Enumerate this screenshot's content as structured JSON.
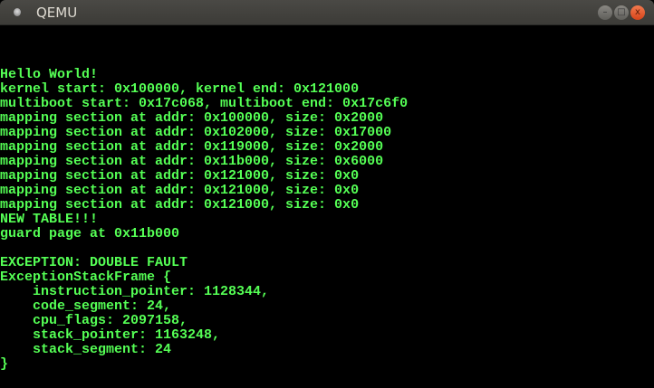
{
  "window": {
    "title": "QEMU",
    "buttons": {
      "minimize": "–",
      "maximize": "□",
      "close": "x"
    }
  },
  "colors": {
    "terminal_text": "#55ff55",
    "terminal_bg": "#000000"
  },
  "terminal": {
    "lines": [
      "Hello World!",
      "kernel start: 0x100000, kernel end: 0x121000",
      "multiboot start: 0x17c068, multiboot end: 0x17c6f0",
      "mapping section at addr: 0x100000, size: 0x2000",
      "mapping section at addr: 0x102000, size: 0x17000",
      "mapping section at addr: 0x119000, size: 0x2000",
      "mapping section at addr: 0x11b000, size: 0x6000",
      "mapping section at addr: 0x121000, size: 0x0",
      "mapping section at addr: 0x121000, size: 0x0",
      "mapping section at addr: 0x121000, size: 0x0",
      "NEW TABLE!!!",
      "guard page at 0x11b000",
      "",
      "EXCEPTION: DOUBLE FAULT",
      "ExceptionStackFrame {",
      "    instruction_pointer: 1128344,",
      "    code_segment: 24,",
      "    cpu_flags: 2097158,",
      "    stack_pointer: 1163248,",
      "    stack_segment: 24",
      "}"
    ]
  }
}
